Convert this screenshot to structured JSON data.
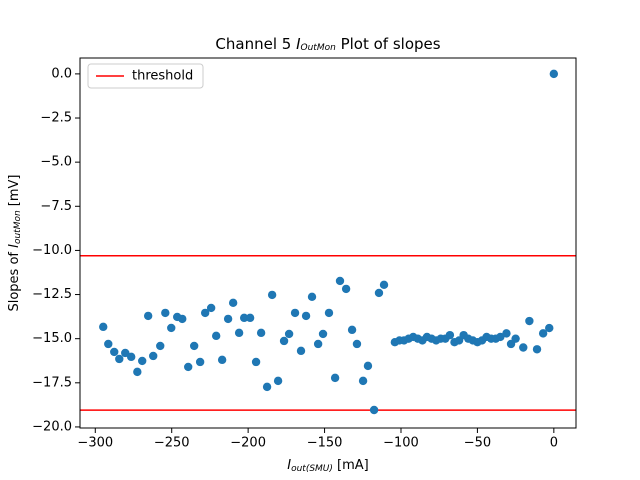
{
  "chart_data": {
    "type": "scatter",
    "title": {
      "before": "Channel 5 ",
      "symbol": "I",
      "subscript": "OutMon",
      "after": " Plot of slopes"
    },
    "xlabel": {
      "symbol": "I",
      "subscript": "out(SMU)",
      "after": " [mA]"
    },
    "ylabel": {
      "before": "Slopes of ",
      "symbol": "I",
      "subscript": "outMon",
      "after": " [mV]"
    },
    "series": [
      {
        "color": "#1f77b4",
        "x": [
          -294.8,
          -291.5,
          -287.6,
          -284.3,
          -280.4,
          -276.5,
          -272.5,
          -269.3,
          -265.4,
          -262.1,
          -257.5,
          -254.2,
          -250.3,
          -246.4,
          -243.1,
          -239.2,
          -235.3,
          -231.4,
          -228.1,
          -224.2,
          -220.9,
          -217.0,
          -213.1,
          -209.8,
          -205.9,
          -202.6,
          -198.7,
          -194.8,
          -191.5,
          -187.6,
          -184.3,
          -180.4,
          -176.5,
          -173.2,
          -169.3,
          -165.4,
          -162.1,
          -158.2,
          -154.2,
          -151.0,
          -147.1,
          -143.1,
          -139.9,
          -135.9,
          -132.0,
          -128.8,
          -124.8,
          -121.6,
          -117.6,
          -114.4,
          -111.1,
          -104,
          -101,
          -98,
          -95,
          -92,
          -89,
          -86,
          -83,
          -80,
          -77,
          -74,
          -71,
          -68,
          -65,
          -62,
          -59,
          -56,
          -53,
          -50,
          -47,
          -44,
          -41,
          -38,
          -35,
          -31,
          -28,
          -25,
          -20,
          -16,
          -11,
          -7,
          -3,
          0
        ],
        "values": [
          -14.33,
          -15.3,
          -15.75,
          -16.15,
          -15.81,
          -16.03,
          -16.88,
          -16.26,
          -13.71,
          -15.98,
          -15.41,
          -13.54,
          -14.39,
          -13.77,
          -13.88,
          -16.6,
          -15.41,
          -16.32,
          -13.54,
          -13.26,
          -14.84,
          -16.2,
          -13.88,
          -12.97,
          -14.67,
          -13.82,
          -13.82,
          -16.32,
          -14.67,
          -17.73,
          -12.52,
          -17.39,
          -15.13,
          -14.73,
          -13.54,
          -15.69,
          -13.71,
          -12.63,
          -15.3,
          -14.73,
          -13.54,
          -17.22,
          -11.73,
          -12.18,
          -14.5,
          -15.3,
          -17.39,
          -16.54,
          -19.04,
          -12.41,
          -11.95,
          -15.2,
          -15.1,
          -15.1,
          -15.0,
          -14.9,
          -15.0,
          -15.1,
          -14.9,
          -15.0,
          -15.1,
          -15.0,
          -15.0,
          -14.8,
          -15.2,
          -15.1,
          -14.8,
          -15.0,
          -15.1,
          -15.2,
          -15.1,
          -14.9,
          -15.0,
          -15.0,
          -14.9,
          -14.7,
          -15.3,
          -15.0,
          -15.5,
          -14.0,
          -15.6,
          -14.7,
          -14.4,
          0.0
        ]
      }
    ],
    "thresholds": {
      "name": "threshold",
      "color": "#ff0000",
      "values": [
        -10.3,
        -19.05
      ]
    },
    "legend": "upper left",
    "xlim": [
      -310,
      14.5
    ],
    "ylim": [
      -20.06,
      0.9
    ],
    "xticks": [
      {
        "value": -300,
        "label": "−300"
      },
      {
        "value": -250,
        "label": "−250"
      },
      {
        "value": -200,
        "label": "−200"
      },
      {
        "value": -150,
        "label": "−150"
      },
      {
        "value": -100,
        "label": "−100"
      },
      {
        "value": -50,
        "label": "−50"
      },
      0
    ],
    "yticks": [
      {
        "value": 0,
        "label": "0.0"
      },
      {
        "value": -2.5,
        "label": "−2.5"
      },
      {
        "value": -5,
        "label": "−5.0"
      },
      {
        "value": -7.5,
        "label": "−7.5"
      },
      {
        "value": -10,
        "label": "−10.0"
      },
      {
        "value": -12.5,
        "label": "−12.5"
      },
      {
        "value": -15,
        "label": "−15.0"
      },
      {
        "value": -17.5,
        "label": "−17.5"
      },
      {
        "value": -20,
        "label": "−20.0"
      }
    ]
  }
}
